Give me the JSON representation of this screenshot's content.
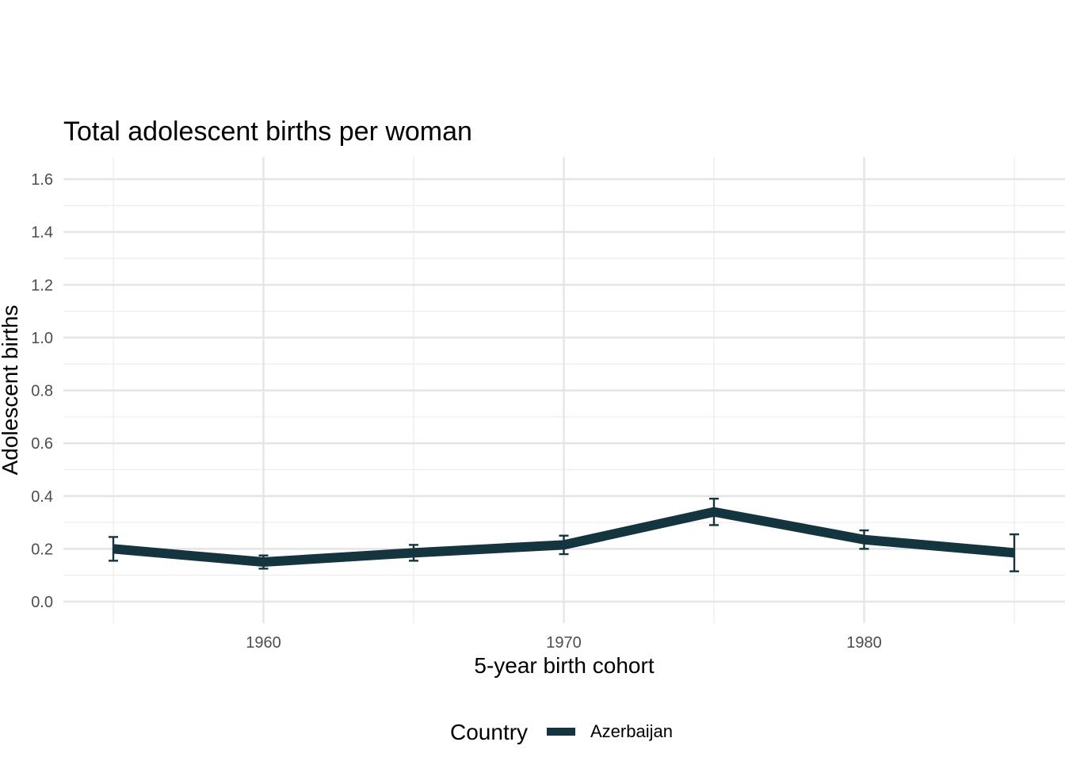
{
  "chart_data": {
    "type": "line",
    "title": "Total adolescent births per woman",
    "xlabel": "5-year birth cohort",
    "ylabel": "Adolescent births",
    "xlim": [
      1953.3,
      1986.7
    ],
    "ylim": [
      -0.08,
      1.68
    ],
    "x_ticks": [
      1960,
      1970,
      1980
    ],
    "x_tick_labels": [
      "1960",
      "1970",
      "1980"
    ],
    "y_ticks": [
      0.0,
      0.2,
      0.4,
      0.6,
      0.8,
      1.0,
      1.2,
      1.4,
      1.6
    ],
    "y_tick_labels": [
      "0.0",
      "0.2",
      "0.4",
      "0.6",
      "0.8",
      "1.0",
      "1.2",
      "1.4",
      "1.6"
    ],
    "grid": true,
    "legend": {
      "title": "Country",
      "position": "bottom"
    },
    "series": [
      {
        "name": "Azerbaijan",
        "color": "#14343f",
        "x": [
          1955,
          1960,
          1965,
          1970,
          1975,
          1980,
          1985
        ],
        "y": [
          0.2,
          0.15,
          0.185,
          0.215,
          0.34,
          0.235,
          0.185
        ],
        "error_low": [
          0.155,
          0.125,
          0.155,
          0.18,
          0.29,
          0.2,
          0.115
        ],
        "error_high": [
          0.245,
          0.175,
          0.215,
          0.25,
          0.39,
          0.27,
          0.255
        ]
      }
    ]
  }
}
